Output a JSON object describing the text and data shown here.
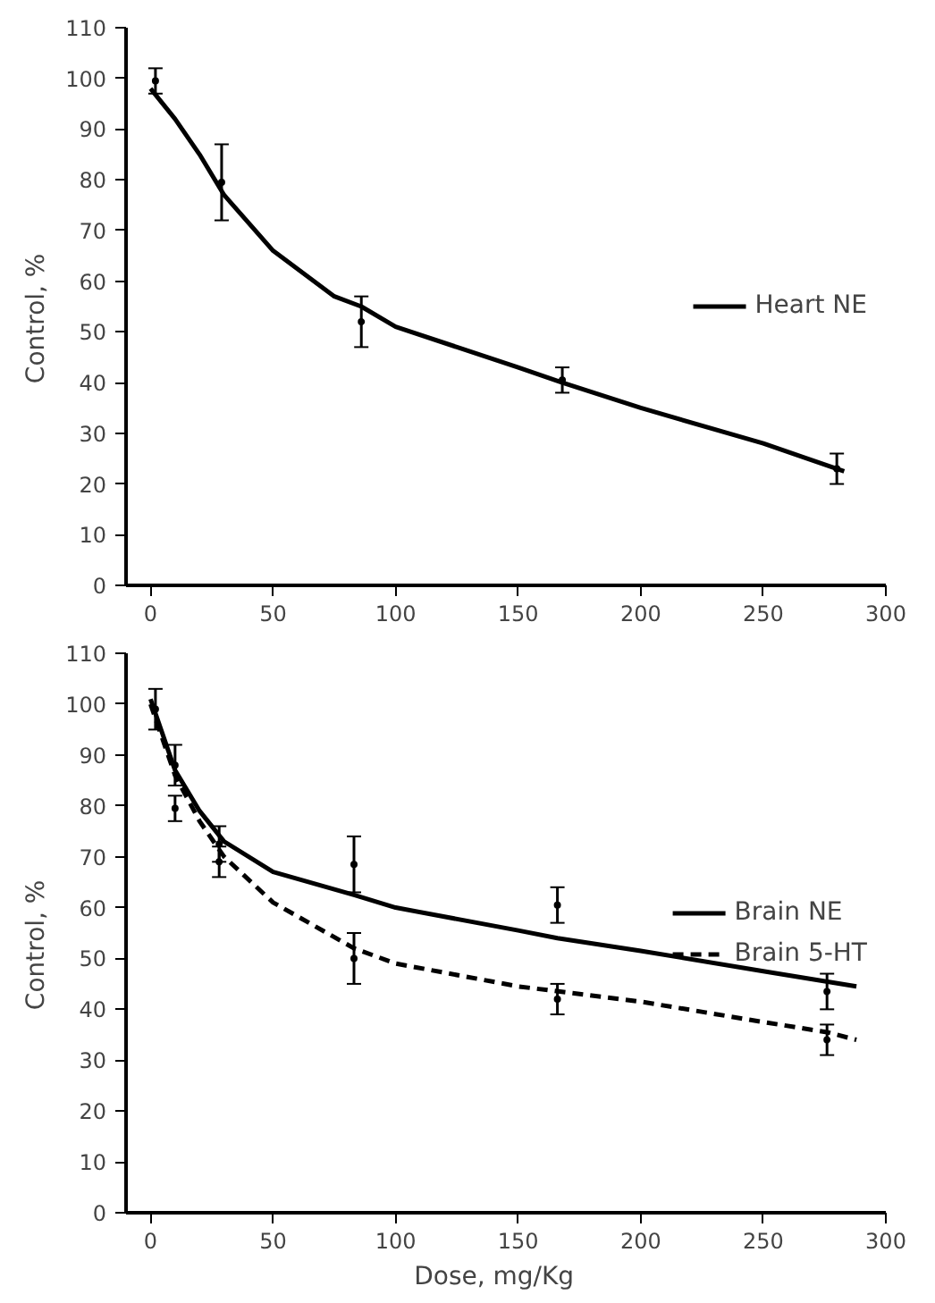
{
  "chart_data": [
    {
      "type": "line",
      "ylabel": "Control,    %",
      "xlim": [
        -10,
        300
      ],
      "ylim": [
        0,
        110
      ],
      "xticks": [
        0,
        50,
        100,
        150,
        200,
        250,
        300
      ],
      "yticks": [
        0,
        10,
        20,
        30,
        40,
        50,
        60,
        70,
        80,
        90,
        100,
        110
      ],
      "grid": false,
      "legend": "right",
      "line_style": "solid",
      "series": [
        {
          "name": "Heart NE",
          "color": "#000000",
          "x": [
            0,
            10,
            20,
            30,
            50,
            75,
            86,
            100,
            125,
            150,
            168,
            200,
            250,
            283
          ],
          "values": [
            98,
            92,
            85,
            77,
            66,
            57,
            55,
            51,
            47,
            43,
            40,
            35,
            28,
            22.5
          ]
        },
        {
          "type": "scatter",
          "marker": "circle",
          "color": "#000000",
          "x": [
            2,
            29,
            86,
            168,
            280
          ],
          "values": [
            99.5,
            79.5,
            52,
            40.5,
            23
          ],
          "errors": [
            [
              97,
              102
            ],
            [
              72,
              87
            ],
            [
              47,
              57
            ],
            [
              38,
              43
            ],
            [
              20,
              26
            ]
          ]
        }
      ]
    },
    {
      "type": "line",
      "xlabel": "Dose,    mg/Kg",
      "ylabel": "Control,    %",
      "xlim": [
        -10,
        300
      ],
      "ylim": [
        0,
        110
      ],
      "xticks": [
        0,
        50,
        100,
        150,
        200,
        250,
        300
      ],
      "yticks": [
        0,
        10,
        20,
        30,
        40,
        50,
        60,
        70,
        80,
        90,
        100,
        110
      ],
      "grid": false,
      "legend": "right",
      "series": [
        {
          "name": "Brain NE",
          "line_style": "solid",
          "color": "#000000",
          "x": [
            0,
            10,
            20,
            30,
            50,
            83,
            100,
            150,
            166,
            200,
            250,
            288
          ],
          "values": [
            101,
            87,
            79,
            73,
            67,
            62.5,
            60,
            55.5,
            54,
            51.5,
            47.5,
            44.5
          ]
        },
        {
          "name": "Brain 5-HT",
          "line_style": "dashed",
          "color": "#000000",
          "x": [
            0,
            10,
            20,
            30,
            50,
            83,
            100,
            150,
            200,
            250,
            276,
            288
          ],
          "values": [
            100,
            86,
            77,
            70,
            61,
            52,
            49,
            44.5,
            41.5,
            37.5,
            35.5,
            34
          ]
        },
        {
          "type": "scatter",
          "marker": "circle",
          "color": "#000000",
          "x": [
            2,
            10,
            28,
            83,
            166,
            276
          ],
          "values": [
            99,
            88,
            72.5,
            68.5,
            60.5,
            43.5
          ],
          "errors": [
            [
              95,
              103
            ],
            [
              84,
              92
            ],
            [
              69,
              76
            ],
            [
              63,
              74
            ],
            [
              57,
              64
            ],
            [
              40,
              47
            ]
          ]
        },
        {
          "type": "scatter",
          "marker": "circle",
          "color": "#000000",
          "x": [
            10,
            28,
            83,
            166,
            276
          ],
          "values": [
            79.5,
            69,
            50,
            42,
            34
          ],
          "errors": [
            [
              77,
              82
            ],
            [
              66,
              72
            ],
            [
              45,
              55
            ],
            [
              39,
              45
            ],
            [
              31,
              37
            ]
          ]
        }
      ]
    }
  ]
}
